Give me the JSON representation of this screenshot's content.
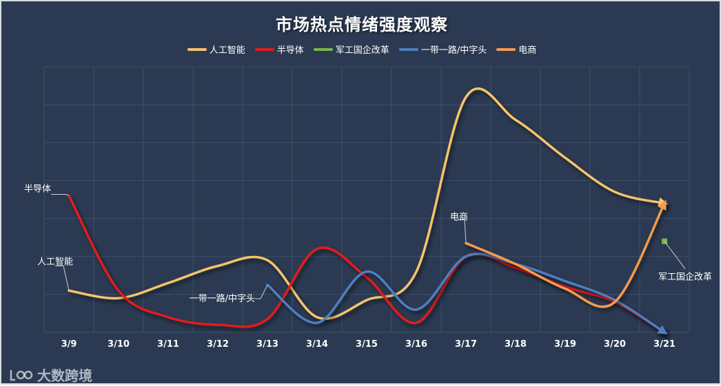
{
  "chart_data": {
    "type": "line",
    "title": "市场热点情绪强度观察",
    "xlabel": "",
    "ylabel": "",
    "categories": [
      "3/9",
      "3/10",
      "3/11",
      "3/12",
      "3/13",
      "3/14",
      "3/15",
      "3/16",
      "3/17",
      "3/18",
      "3/19",
      "3/20",
      "3/21"
    ],
    "ylim": [
      0,
      7
    ],
    "grid": true,
    "legend_position": "top-center",
    "series": [
      {
        "name": "人工智能",
        "color": "#f6c469",
        "values": [
          1.1,
          0.9,
          1.3,
          1.75,
          1.9,
          0.4,
          0.85,
          1.6,
          6.2,
          5.6,
          4.6,
          3.7,
          3.4
        ]
      },
      {
        "name": "半导体",
        "color": "#e21a1a",
        "values": [
          3.6,
          1.1,
          0.4,
          0.2,
          0.35,
          2.2,
          1.45,
          0.25,
          2.0,
          1.7,
          1.2,
          0.8,
          0.0
        ]
      },
      {
        "name": "军工国企改革",
        "color": "#7ab648",
        "values": [
          null,
          null,
          null,
          null,
          null,
          null,
          null,
          null,
          null,
          null,
          null,
          null,
          2.4
        ]
      },
      {
        "name": "一带一路/中字头",
        "color": "#4f7ec0",
        "values": [
          null,
          null,
          null,
          null,
          1.25,
          0.25,
          1.6,
          0.6,
          2.0,
          1.8,
          1.35,
          0.85,
          0.0
        ]
      },
      {
        "name": "电商",
        "color": "#f79a4c",
        "values": [
          null,
          null,
          null,
          null,
          null,
          null,
          null,
          null,
          2.35,
          1.8,
          1.15,
          0.8,
          3.4
        ]
      }
    ],
    "annotations": [
      {
        "text": "半导体",
        "series": "半导体",
        "category": "3/9"
      },
      {
        "text": "人工智能",
        "series": "人工智能",
        "category": "3/9"
      },
      {
        "text": "一带一路/中字头",
        "series": "一带一路/中字头",
        "category": "3/13"
      },
      {
        "text": "电商",
        "series": "电商",
        "category": "3/17"
      },
      {
        "text": "军工国企改革",
        "series": "军工国企改革",
        "category": "3/21"
      }
    ]
  },
  "watermark": {
    "text": "大数跨境"
  }
}
